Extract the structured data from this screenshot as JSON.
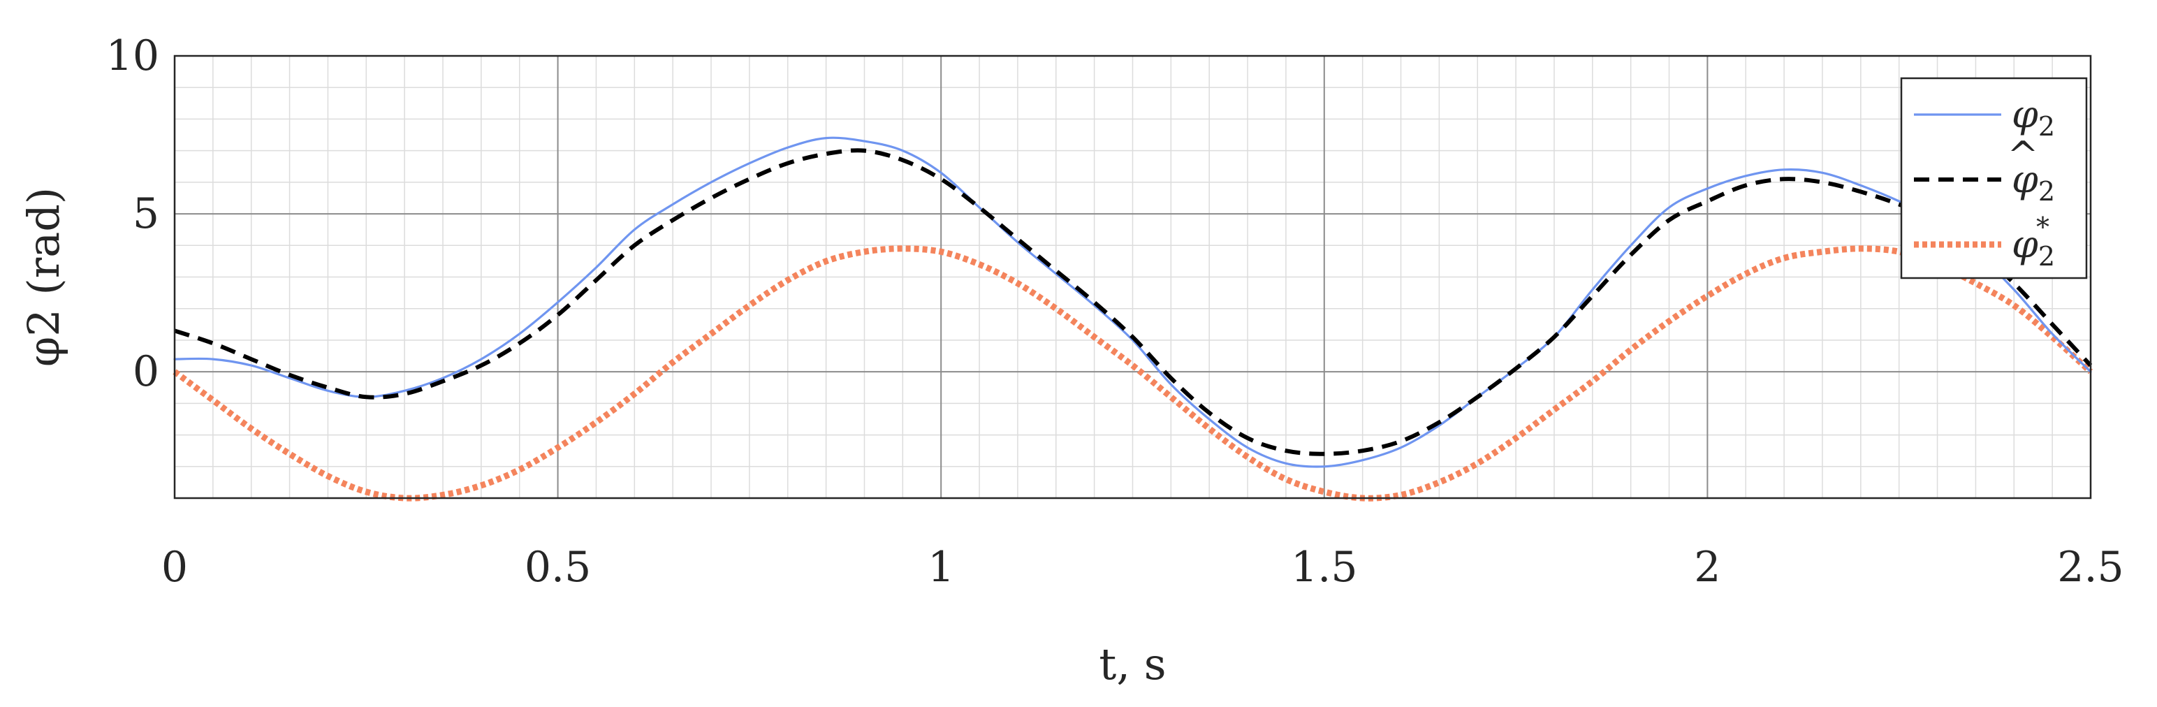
{
  "chart_data": {
    "type": "line",
    "xlabel": "t, s",
    "ylabel": "φ2 (rad)",
    "xlim": [
      0,
      2.5
    ],
    "ylim": [
      -4,
      10
    ],
    "xticks": [
      0,
      0.5,
      1,
      1.5,
      2,
      2.5
    ],
    "yticks": [
      0,
      5,
      10
    ],
    "xtick_labels": [
      "0",
      "0.5",
      "1",
      "1.5",
      "2",
      "2.5"
    ],
    "ytick_labels": [
      "0",
      "5",
      "10"
    ],
    "grid": true,
    "minor_grid": true,
    "legend_position": "top-right",
    "series": [
      {
        "name": "φ2",
        "legend_base": "φ",
        "legend_sub": "2",
        "legend_accent": "",
        "legend_sup": "",
        "color": "#6f95f0",
        "style": "solid",
        "x": [
          0,
          0.05,
          0.1,
          0.15,
          0.2,
          0.25,
          0.3,
          0.35,
          0.4,
          0.45,
          0.5,
          0.55,
          0.6,
          0.65,
          0.7,
          0.75,
          0.8,
          0.85,
          0.9,
          0.95,
          1.0,
          1.05,
          1.1,
          1.15,
          1.2,
          1.25,
          1.3,
          1.35,
          1.4,
          1.45,
          1.5,
          1.55,
          1.6,
          1.65,
          1.7,
          1.75,
          1.8,
          1.85,
          1.9,
          1.95,
          2.0,
          2.05,
          2.1,
          2.15,
          2.2,
          2.25,
          2.3,
          2.35,
          2.4,
          2.45,
          2.5
        ],
        "y": [
          0.4,
          0.4,
          0.2,
          -0.2,
          -0.6,
          -0.8,
          -0.6,
          -0.2,
          0.4,
          1.2,
          2.2,
          3.3,
          4.5,
          5.3,
          6.0,
          6.6,
          7.1,
          7.4,
          7.3,
          7.0,
          6.3,
          5.2,
          4.1,
          3.1,
          2.1,
          1.0,
          -0.4,
          -1.5,
          -2.4,
          -2.9,
          -3.0,
          -2.8,
          -2.4,
          -1.7,
          -0.8,
          0.1,
          1.1,
          2.6,
          4.0,
          5.2,
          5.8,
          6.2,
          6.4,
          6.3,
          5.9,
          5.4,
          4.8,
          3.8,
          2.6,
          1.2,
          0.0
        ]
      },
      {
        "name": "φ̂2",
        "legend_base": "φ",
        "legend_sub": "2",
        "legend_accent": "^",
        "legend_sup": "",
        "color": "#000000",
        "style": "dashed",
        "x": [
          0,
          0.05,
          0.1,
          0.15,
          0.2,
          0.25,
          0.3,
          0.35,
          0.4,
          0.45,
          0.5,
          0.55,
          0.6,
          0.65,
          0.7,
          0.75,
          0.8,
          0.85,
          0.9,
          0.95,
          1.0,
          1.05,
          1.1,
          1.15,
          1.2,
          1.25,
          1.3,
          1.35,
          1.4,
          1.45,
          1.5,
          1.55,
          1.6,
          1.65,
          1.7,
          1.75,
          1.8,
          1.85,
          1.9,
          1.95,
          2.0,
          2.05,
          2.1,
          2.15,
          2.2,
          2.25,
          2.3,
          2.35,
          2.4,
          2.45,
          2.5
        ],
        "y": [
          1.3,
          0.9,
          0.4,
          -0.1,
          -0.5,
          -0.8,
          -0.7,
          -0.3,
          0.2,
          0.9,
          1.8,
          2.9,
          4.0,
          4.8,
          5.5,
          6.1,
          6.6,
          6.9,
          7.0,
          6.7,
          6.1,
          5.2,
          4.2,
          3.2,
          2.2,
          1.1,
          -0.2,
          -1.3,
          -2.1,
          -2.5,
          -2.6,
          -2.5,
          -2.2,
          -1.6,
          -0.8,
          0.1,
          1.1,
          2.4,
          3.7,
          4.8,
          5.4,
          5.9,
          6.1,
          6.0,
          5.7,
          5.3,
          4.8,
          3.9,
          2.8,
          1.5,
          0.2
        ]
      },
      {
        "name": "φ2*",
        "legend_base": "φ",
        "legend_sub": "2",
        "legend_accent": "",
        "legend_sup": "*",
        "color": "#f4845c",
        "style": "dotted",
        "x": [
          0,
          0.05,
          0.1,
          0.15,
          0.2,
          0.25,
          0.3,
          0.35,
          0.4,
          0.45,
          0.5,
          0.55,
          0.6,
          0.65,
          0.7,
          0.75,
          0.8,
          0.85,
          0.9,
          0.95,
          1.0,
          1.05,
          1.1,
          1.15,
          1.2,
          1.25,
          1.3,
          1.35,
          1.4,
          1.45,
          1.5,
          1.55,
          1.6,
          1.65,
          1.7,
          1.75,
          1.8,
          1.85,
          1.9,
          1.95,
          2.0,
          2.05,
          2.1,
          2.15,
          2.2,
          2.25,
          2.3,
          2.35,
          2.4,
          2.45,
          2.5
        ],
        "y": [
          0.0,
          -0.9,
          -1.8,
          -2.6,
          -3.3,
          -3.8,
          -4.0,
          -3.9,
          -3.6,
          -3.1,
          -2.4,
          -1.6,
          -0.7,
          0.3,
          1.2,
          2.1,
          2.9,
          3.5,
          3.8,
          3.9,
          3.8,
          3.4,
          2.8,
          2.0,
          1.1,
          0.2,
          -0.8,
          -1.8,
          -2.7,
          -3.4,
          -3.8,
          -4.0,
          -3.9,
          -3.5,
          -2.9,
          -2.1,
          -1.2,
          -0.3,
          0.7,
          1.6,
          2.4,
          3.1,
          3.6,
          3.8,
          3.9,
          3.8,
          3.4,
          2.8,
          2.1,
          1.1,
          0.0
        ]
      }
    ]
  }
}
